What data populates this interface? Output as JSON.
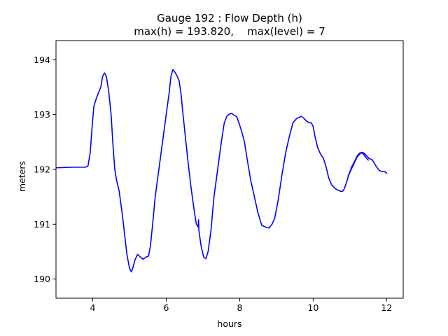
{
  "chart_data": {
    "type": "line",
    "title": "Gauge 192 : Flow Depth (h)",
    "subtitle": "max(h) = 193.820,    max(level) = 7",
    "xlabel": "hours",
    "ylabel": "meters",
    "xlim": [
      3.0,
      12.45
    ],
    "ylim": [
      189.65,
      194.35
    ],
    "xticks": [
      4,
      6,
      8,
      10,
      12
    ],
    "yticks": [
      190,
      191,
      192,
      193,
      194
    ],
    "xtick_labels": [
      "4",
      "6",
      "8",
      "10",
      "12"
    ],
    "ytick_labels": [
      "190",
      "191",
      "192",
      "193",
      "194"
    ],
    "grid": false,
    "series": [
      {
        "color": "#0000ff",
        "points": [
          [
            3.0,
            192.03
          ],
          [
            3.5,
            192.04
          ],
          [
            3.8,
            192.04
          ],
          [
            3.87,
            192.06
          ],
          [
            3.93,
            192.3
          ],
          [
            3.98,
            192.75
          ],
          [
            4.03,
            193.15
          ],
          [
            4.1,
            193.3
          ],
          [
            4.17,
            193.42
          ],
          [
            4.22,
            193.5
          ],
          [
            4.27,
            193.7
          ],
          [
            4.32,
            193.76
          ],
          [
            4.37,
            193.7
          ],
          [
            4.43,
            193.45
          ],
          [
            4.5,
            193.0
          ],
          [
            4.55,
            192.45
          ],
          [
            4.6,
            192.0
          ],
          [
            4.65,
            191.8
          ],
          [
            4.72,
            191.6
          ],
          [
            4.8,
            191.2
          ],
          [
            4.87,
            190.8
          ],
          [
            4.93,
            190.45
          ],
          [
            5.0,
            190.2
          ],
          [
            5.05,
            190.13
          ],
          [
            5.09,
            190.2
          ],
          [
            5.15,
            190.35
          ],
          [
            5.22,
            190.45
          ],
          [
            5.3,
            190.4
          ],
          [
            5.37,
            190.36
          ],
          [
            5.45,
            190.4
          ],
          [
            5.52,
            190.42
          ],
          [
            5.57,
            190.6
          ],
          [
            5.63,
            191.0
          ],
          [
            5.7,
            191.5
          ],
          [
            5.8,
            192.0
          ],
          [
            5.9,
            192.5
          ],
          [
            6.0,
            193.0
          ],
          [
            6.08,
            193.4
          ],
          [
            6.13,
            193.7
          ],
          [
            6.18,
            193.82
          ],
          [
            6.23,
            193.78
          ],
          [
            6.3,
            193.7
          ],
          [
            6.35,
            193.62
          ],
          [
            6.4,
            193.4
          ],
          [
            6.45,
            193.05
          ],
          [
            6.52,
            192.6
          ],
          [
            6.6,
            192.1
          ],
          [
            6.67,
            191.7
          ],
          [
            6.75,
            191.3
          ],
          [
            6.82,
            191.0
          ],
          [
            6.87,
            190.95
          ],
          [
            6.88,
            191.08
          ],
          [
            6.89,
            190.88
          ],
          [
            6.95,
            190.6
          ],
          [
            7.02,
            190.4
          ],
          [
            7.08,
            190.37
          ],
          [
            7.14,
            190.5
          ],
          [
            7.22,
            190.9
          ],
          [
            7.3,
            191.5
          ],
          [
            7.4,
            192.0
          ],
          [
            7.5,
            192.5
          ],
          [
            7.58,
            192.85
          ],
          [
            7.65,
            192.97
          ],
          [
            7.72,
            193.01
          ],
          [
            7.78,
            193.02
          ],
          [
            7.85,
            192.99
          ],
          [
            7.92,
            192.96
          ],
          [
            7.98,
            192.85
          ],
          [
            8.05,
            192.7
          ],
          [
            8.13,
            192.5
          ],
          [
            8.2,
            192.2
          ],
          [
            8.3,
            191.8
          ],
          [
            8.4,
            191.5
          ],
          [
            8.5,
            191.2
          ],
          [
            8.6,
            190.98
          ],
          [
            8.7,
            190.95
          ],
          [
            8.8,
            190.93
          ],
          [
            8.88,
            191.0
          ],
          [
            8.95,
            191.1
          ],
          [
            9.05,
            191.45
          ],
          [
            9.15,
            191.9
          ],
          [
            9.25,
            192.3
          ],
          [
            9.35,
            192.6
          ],
          [
            9.45,
            192.85
          ],
          [
            9.55,
            192.93
          ],
          [
            9.62,
            192.95
          ],
          [
            9.68,
            192.97
          ],
          [
            9.75,
            192.93
          ],
          [
            9.82,
            192.88
          ],
          [
            9.9,
            192.85
          ],
          [
            9.95,
            192.85
          ],
          [
            10.0,
            192.78
          ],
          [
            10.05,
            192.6
          ],
          [
            10.12,
            192.4
          ],
          [
            10.2,
            192.28
          ],
          [
            10.28,
            192.2
          ],
          [
            10.35,
            192.05
          ],
          [
            10.42,
            191.85
          ],
          [
            10.5,
            191.72
          ],
          [
            10.6,
            191.65
          ],
          [
            10.68,
            191.62
          ],
          [
            10.75,
            191.6
          ],
          [
            10.8,
            191.6
          ],
          [
            10.85,
            191.65
          ],
          [
            10.9,
            191.75
          ],
          [
            10.97,
            191.9
          ],
          [
            11.05,
            192.05
          ],
          [
            11.13,
            192.15
          ],
          [
            11.2,
            192.25
          ],
          [
            11.27,
            192.3
          ],
          [
            11.33,
            192.31
          ],
          [
            11.38,
            192.3
          ],
          [
            11.45,
            192.25
          ],
          [
            11.52,
            192.2
          ],
          [
            11.6,
            192.18
          ],
          [
            11.65,
            192.13
          ],
          [
            11.72,
            192.05
          ],
          [
            11.8,
            191.98
          ],
          [
            11.88,
            191.96
          ],
          [
            11.95,
            191.96
          ],
          [
            12.0,
            191.93
          ]
        ]
      },
      {
        "color": "#0000ff",
        "points": [
          [
            10.95,
            191.88
          ],
          [
            11.05,
            192.02
          ],
          [
            11.12,
            192.12
          ],
          [
            11.2,
            192.23
          ],
          [
            11.28,
            192.29
          ],
          [
            11.33,
            192.3
          ],
          [
            11.38,
            192.27
          ],
          [
            11.43,
            192.22
          ],
          [
            11.5,
            192.17
          ]
        ]
      }
    ]
  }
}
